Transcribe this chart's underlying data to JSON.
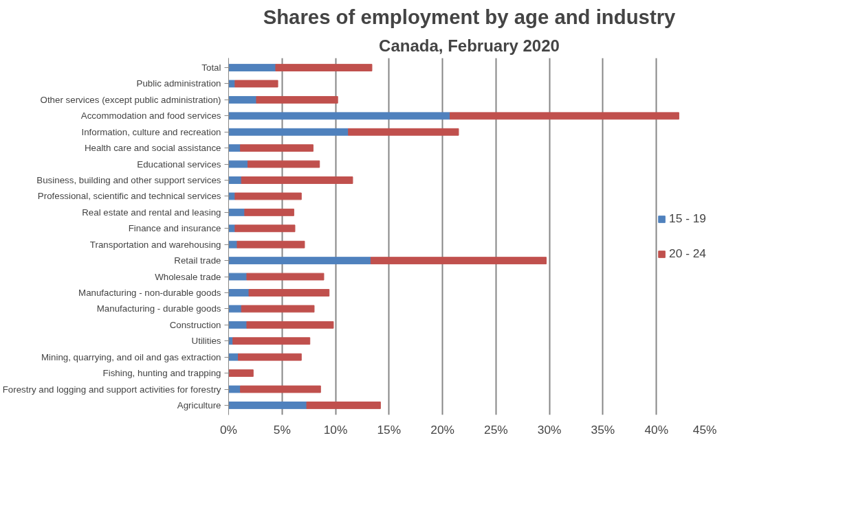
{
  "chart_data": {
    "type": "bar",
    "orientation": "horizontal",
    "stacked": true,
    "title": "Shares of employment by age and industry",
    "subtitle": "Canada, February 2020",
    "categories": [
      "Total",
      "Public administration",
      "Other services (except public administration)",
      "Accommodation and food services",
      "Information, culture and recreation",
      "Health care and social assistance",
      "Educational services",
      "Business, building and other support services",
      "Professional, scientific and technical services",
      "Real estate and rental and leasing",
      "Finance and insurance",
      "Transportation and warehousing",
      "Retail trade",
      "Wholesale trade",
      "Manufacturing - non-durable goods",
      "Manufacturing - durable goods",
      "Construction",
      "Utilities",
      "Mining, quarrying, and oil and gas extraction",
      "Fishing, hunting and trapping",
      "Forestry and logging and support activities for forestry",
      "Agriculture"
    ],
    "series": [
      {
        "name": "15 - 19",
        "color": "#4f81bd",
        "values": [
          4.4,
          0.6,
          2.6,
          20.7,
          11.2,
          1.1,
          1.8,
          1.2,
          0.6,
          1.5,
          0.6,
          0.8,
          13.3,
          1.7,
          1.9,
          1.2,
          1.7,
          0.4,
          0.9,
          0,
          1.1,
          7.3
        ]
      },
      {
        "name": "20 - 24",
        "color": "#c0504d",
        "values": [
          9.0,
          4.0,
          7.6,
          21.4,
          10.3,
          6.8,
          6.7,
          10.4,
          6.2,
          4.6,
          5.6,
          6.3,
          16.4,
          7.2,
          7.5,
          6.8,
          8.1,
          7.2,
          5.9,
          2.3,
          7.5,
          6.9
        ]
      }
    ],
    "xlim": [
      0,
      45
    ],
    "xticks": [
      {
        "value": 0,
        "label": "0%"
      },
      {
        "value": 5,
        "label": "5%"
      },
      {
        "value": 10,
        "label": "10%"
      },
      {
        "value": 15,
        "label": "15%"
      },
      {
        "value": 20,
        "label": "20%"
      },
      {
        "value": 25,
        "label": "25%"
      },
      {
        "value": 30,
        "label": "30%"
      },
      {
        "value": 35,
        "label": "35%"
      },
      {
        "value": 40,
        "label": "40%"
      },
      {
        "value": 45,
        "label": "45%"
      }
    ],
    "grid": "x",
    "legend": "right"
  }
}
